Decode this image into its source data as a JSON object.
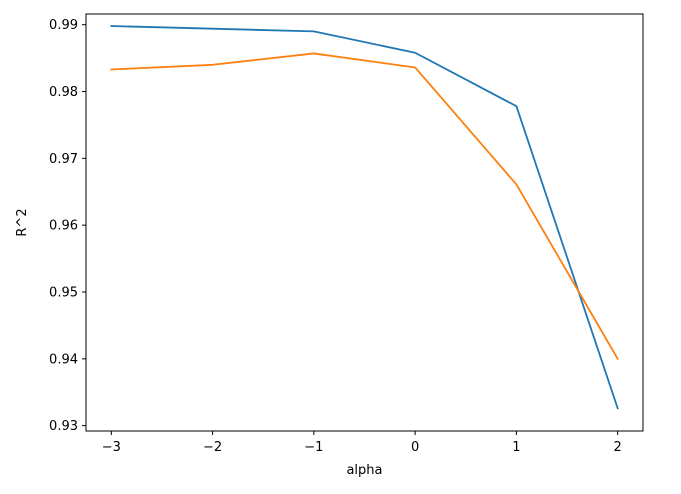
{
  "chart_data": {
    "type": "line",
    "title": "",
    "xlabel": "alpha",
    "ylabel": "R^2",
    "xlim": [
      -3.25,
      2.25
    ],
    "ylim": [
      0.9292,
      0.9916
    ],
    "grid": false,
    "x_ticks": [
      -3,
      -2,
      -1,
      0,
      1,
      2
    ],
    "x_tick_labels": [
      "−3",
      "−2",
      "−1",
      "0",
      "1",
      "2"
    ],
    "y_ticks": [
      0.93,
      0.94,
      0.95,
      0.96,
      0.97,
      0.98,
      0.99
    ],
    "y_tick_labels": [
      "0.93",
      "0.94",
      "0.95",
      "0.96",
      "0.97",
      "0.98",
      "0.99"
    ],
    "x": [
      -3,
      -2,
      -1,
      0,
      1,
      2
    ],
    "series": [
      {
        "color": "#1f77b4",
        "values": [
          0.9898,
          0.9894,
          0.989,
          0.9858,
          0.9778,
          0.9326
        ]
      },
      {
        "color": "#ff7f0e",
        "values": [
          0.9833,
          0.984,
          0.9857,
          0.9836,
          0.9661,
          0.94
        ]
      }
    ]
  }
}
